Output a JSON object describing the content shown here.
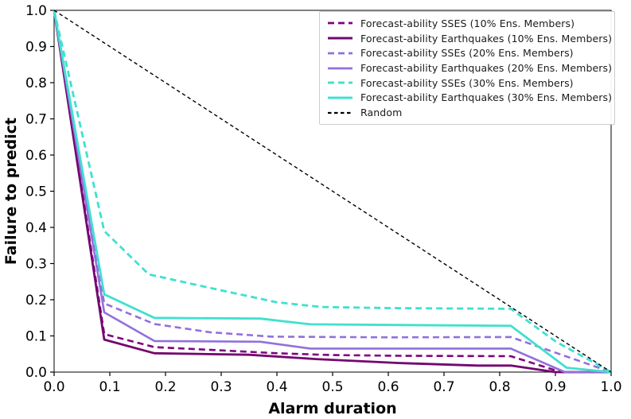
{
  "figure": {
    "background": "#ffffff",
    "frame_color": "#2b2b2b"
  },
  "chart_data": {
    "type": "line",
    "title": "",
    "xlabel": "Alarm duration",
    "ylabel": "Failure to predict",
    "xlim": [
      0.0,
      1.0
    ],
    "ylim": [
      0.0,
      1.0
    ],
    "x_ticks": [
      "0.0",
      "0.1",
      "0.2",
      "0.3",
      "0.4",
      "0.5",
      "0.6",
      "0.7",
      "0.8",
      "0.9",
      "1.0"
    ],
    "y_ticks": [
      "0.0",
      "0.1",
      "0.2",
      "0.3",
      "0.4",
      "0.5",
      "0.6",
      "0.7",
      "0.8",
      "0.9",
      "1.0"
    ],
    "grid": false,
    "legend_position": "upper right",
    "series": [
      {
        "name": "Forecast-ability SSES (10% Ens. Members)",
        "color": "#800080",
        "style": "dashed",
        "width": 2.6,
        "points": [
          [
            0,
            1
          ],
          [
            0.09,
            0.105
          ],
          [
            0.18,
            0.069
          ],
          [
            0.3,
            0.06
          ],
          [
            0.4,
            0.052
          ],
          [
            0.5,
            0.047
          ],
          [
            0.62,
            0.045
          ],
          [
            0.82,
            0.044
          ],
          [
            0.91,
            0
          ],
          [
            1,
            0
          ]
        ]
      },
      {
        "name": "Forecast-ability Earthquakes (10% Ens. Members)",
        "color": "#73066f",
        "style": "solid",
        "width": 2.8,
        "points": [
          [
            0,
            1
          ],
          [
            0.09,
            0.09
          ],
          [
            0.18,
            0.052
          ],
          [
            0.35,
            0.048
          ],
          [
            0.47,
            0.036
          ],
          [
            0.62,
            0.025
          ],
          [
            0.76,
            0.018
          ],
          [
            0.82,
            0.018
          ],
          [
            0.9,
            0
          ],
          [
            1,
            0
          ]
        ]
      },
      {
        "name": "Forecast-ability SSEs (20% Ens. Members)",
        "color": "#9370DB",
        "style": "dashed",
        "width": 2.6,
        "points": [
          [
            0,
            1
          ],
          [
            0.09,
            0.19
          ],
          [
            0.18,
            0.133
          ],
          [
            0.28,
            0.11
          ],
          [
            0.39,
            0.098
          ],
          [
            0.6,
            0.096
          ],
          [
            0.82,
            0.097
          ],
          [
            1,
            0
          ]
        ]
      },
      {
        "name": "Forecast-ability Earthquakes (20% Ens. Members)",
        "color": "#9370DB",
        "style": "solid",
        "width": 2.6,
        "points": [
          [
            0,
            1
          ],
          [
            0.09,
            0.165
          ],
          [
            0.18,
            0.086
          ],
          [
            0.37,
            0.084
          ],
          [
            0.46,
            0.065
          ],
          [
            0.82,
            0.065
          ],
          [
            0.917,
            0
          ],
          [
            1,
            0
          ]
        ]
      },
      {
        "name": "Forecast-ability SSEs (30% Ens. Members)",
        "color": "#40E0D0",
        "style": "dashed",
        "width": 2.8,
        "points": [
          [
            0,
            1
          ],
          [
            0.09,
            0.39
          ],
          [
            0.17,
            0.27
          ],
          [
            0.3,
            0.226
          ],
          [
            0.4,
            0.193
          ],
          [
            0.48,
            0.18
          ],
          [
            0.6,
            0.177
          ],
          [
            0.82,
            0.175
          ],
          [
            0.9,
            0.085
          ],
          [
            1,
            0
          ]
        ]
      },
      {
        "name": "Forecast-ability Earthquakes (30% Ens. Members)",
        "color": "#40E0D0",
        "style": "solid",
        "width": 2.8,
        "points": [
          [
            0,
            1
          ],
          [
            0.09,
            0.215
          ],
          [
            0.18,
            0.15
          ],
          [
            0.37,
            0.148
          ],
          [
            0.46,
            0.132
          ],
          [
            0.82,
            0.128
          ],
          [
            0.92,
            0.012
          ],
          [
            1,
            0
          ]
        ]
      },
      {
        "name": "Random",
        "color": "#000000",
        "style": "dotted-dash",
        "width": 1.4,
        "points": [
          [
            0,
            1
          ],
          [
            1,
            0
          ]
        ]
      }
    ]
  }
}
